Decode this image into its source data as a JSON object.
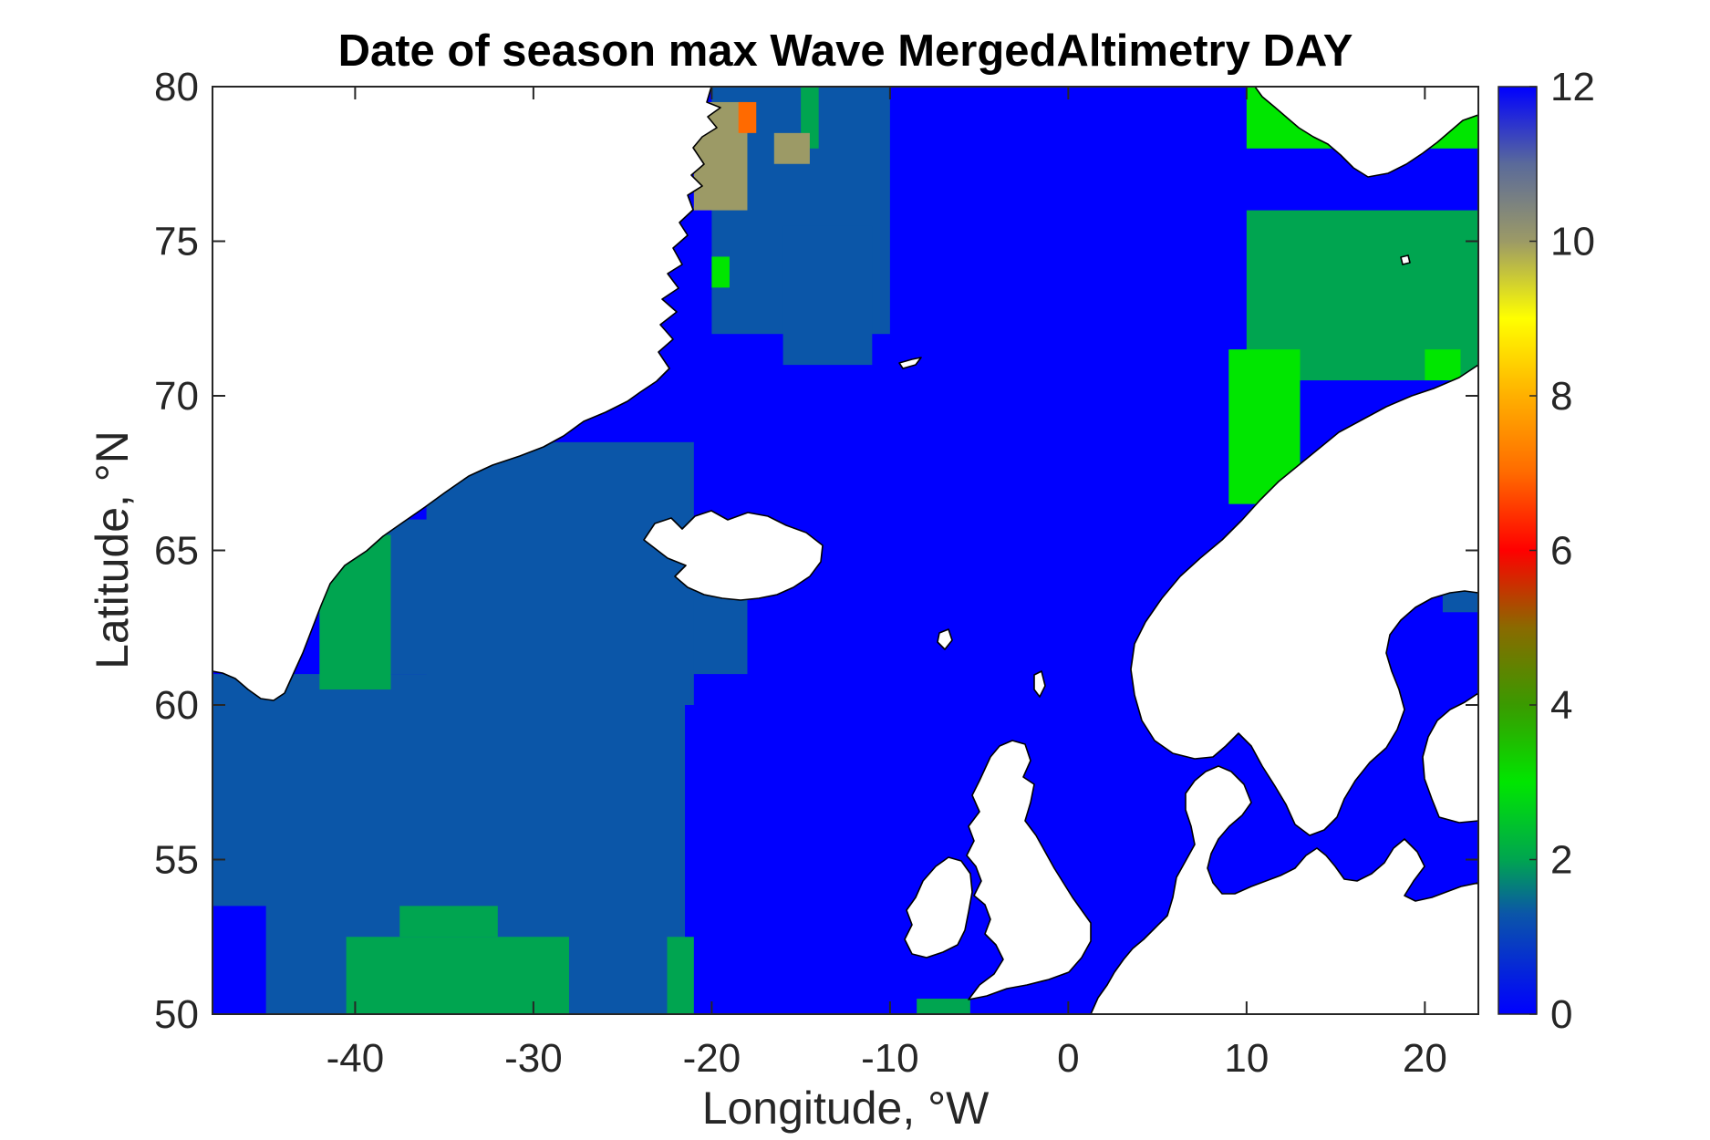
{
  "chart_data": {
    "type": "heatmap",
    "title": "Date of season max Wave MergedAltimetry DAY",
    "xlabel": "Longitude, °W",
    "ylabel": "Latitude, °N",
    "xlim": [
      -48,
      23
    ],
    "ylim": [
      50,
      80
    ],
    "xticks": [
      -40,
      -30,
      -20,
      -10,
      0,
      10,
      20
    ],
    "yticks": [
      50,
      55,
      60,
      65,
      70,
      75,
      80
    ],
    "colorbar": {
      "min": 0,
      "max": 12,
      "ticks": [
        0,
        2,
        4,
        6,
        8,
        10,
        12
      ],
      "colormap_stops": [
        {
          "value": 0,
          "color": "#0000ff"
        },
        {
          "value": 1.3,
          "color": "#0b56a8"
        },
        {
          "value": 2,
          "color": "#00a550"
        },
        {
          "value": 3,
          "color": "#00e600"
        },
        {
          "value": 4,
          "color": "#3a9a00"
        },
        {
          "value": 5,
          "color": "#8a6a00"
        },
        {
          "value": 6,
          "color": "#ff0000"
        },
        {
          "value": 7,
          "color": "#ff6a00"
        },
        {
          "value": 8,
          "color": "#ffb000"
        },
        {
          "value": 9,
          "color": "#ffff00"
        },
        {
          "value": 10,
          "color": "#9c9a66"
        },
        {
          "value": 11,
          "color": "#5a6a9a"
        },
        {
          "value": 12,
          "color": "#0000ff"
        }
      ]
    },
    "regions": [
      {
        "value": 0,
        "color": "#0000ff",
        "lon": [
          -48,
          23
        ],
        "lat": [
          50,
          80
        ]
      },
      {
        "value": 1.3,
        "color": "#0b56a8",
        "lon": [
          -48,
          -22.5
        ],
        "lat": [
          50,
          61
        ]
      },
      {
        "value": 1.3,
        "color": "#0b56a8",
        "lon": [
          -48,
          -21.5
        ],
        "lat": [
          50,
          60
        ]
      },
      {
        "value": 1.3,
        "color": "#0b56a8",
        "lon": [
          -40,
          -18
        ],
        "lat": [
          61,
          66
        ]
      },
      {
        "value": 1.3,
        "color": "#0b56a8",
        "lon": [
          -36,
          -21
        ],
        "lat": [
          60,
          68.5
        ]
      },
      {
        "value": 1.3,
        "color": "#0b56a8",
        "lon": [
          -20,
          -10
        ],
        "lat": [
          72,
          80
        ]
      },
      {
        "value": 1.3,
        "color": "#0b56a8",
        "lon": [
          -16,
          -11
        ],
        "lat": [
          71,
          75.5
        ]
      },
      {
        "value": 1.3,
        "color": "#0b56a8",
        "lon": [
          21,
          23
        ],
        "lat": [
          63,
          66
        ]
      },
      {
        "value": 0,
        "color": "#0000ff",
        "lon": [
          -48,
          -45
        ],
        "lat": [
          50,
          53.5
        ]
      },
      {
        "value": 2,
        "color": "#00a550",
        "lon": [
          -40.5,
          -28
        ],
        "lat": [
          50,
          52.5
        ]
      },
      {
        "value": 2,
        "color": "#00a550",
        "lon": [
          -37.5,
          -32
        ],
        "lat": [
          52.5,
          53.5
        ]
      },
      {
        "value": 2,
        "color": "#00a550",
        "lon": [
          -22.5,
          -21
        ],
        "lat": [
          50,
          52.5
        ]
      },
      {
        "value": 2,
        "color": "#00a550",
        "lon": [
          -8.5,
          -5.5
        ],
        "lat": [
          50,
          50.5
        ]
      },
      {
        "value": 2,
        "color": "#00a550",
        "lon": [
          -42,
          -38
        ],
        "lat": [
          60.5,
          65.5
        ]
      },
      {
        "value": 2,
        "color": "#00a550",
        "lon": [
          10,
          23
        ],
        "lat": [
          70.5,
          76
        ]
      },
      {
        "value": 2,
        "color": "#00a550",
        "lon": [
          -15,
          -14
        ],
        "lat": [
          78,
          80
        ]
      },
      {
        "value": 3,
        "color": "#00e600",
        "lon": [
          9,
          13
        ],
        "lat": [
          66.5,
          71.5
        ]
      },
      {
        "value": 3,
        "color": "#00e600",
        "lon": [
          10,
          23
        ],
        "lat": [
          78,
          80
        ]
      },
      {
        "value": 3,
        "color": "#00e600",
        "lon": [
          20,
          22
        ],
        "lat": [
          70.5,
          71.5
        ]
      },
      {
        "value": 3,
        "color": "#00e600",
        "lon": [
          -20,
          -19
        ],
        "lat": [
          73.5,
          74.5
        ]
      },
      {
        "value": 10,
        "color": "#9c9a66",
        "lon": [
          -21,
          -18
        ],
        "lat": [
          76,
          79.5
        ]
      },
      {
        "value": 10,
        "color": "#9c9a66",
        "lon": [
          -16.5,
          -14.5
        ],
        "lat": [
          77.5,
          78.5
        ]
      },
      {
        "value": 7,
        "color": "#ff6a00",
        "lon": [
          -18.5,
          -17.5
        ],
        "lat": [
          78.5,
          79.5
        ]
      }
    ],
    "land": "white",
    "grid": false
  }
}
